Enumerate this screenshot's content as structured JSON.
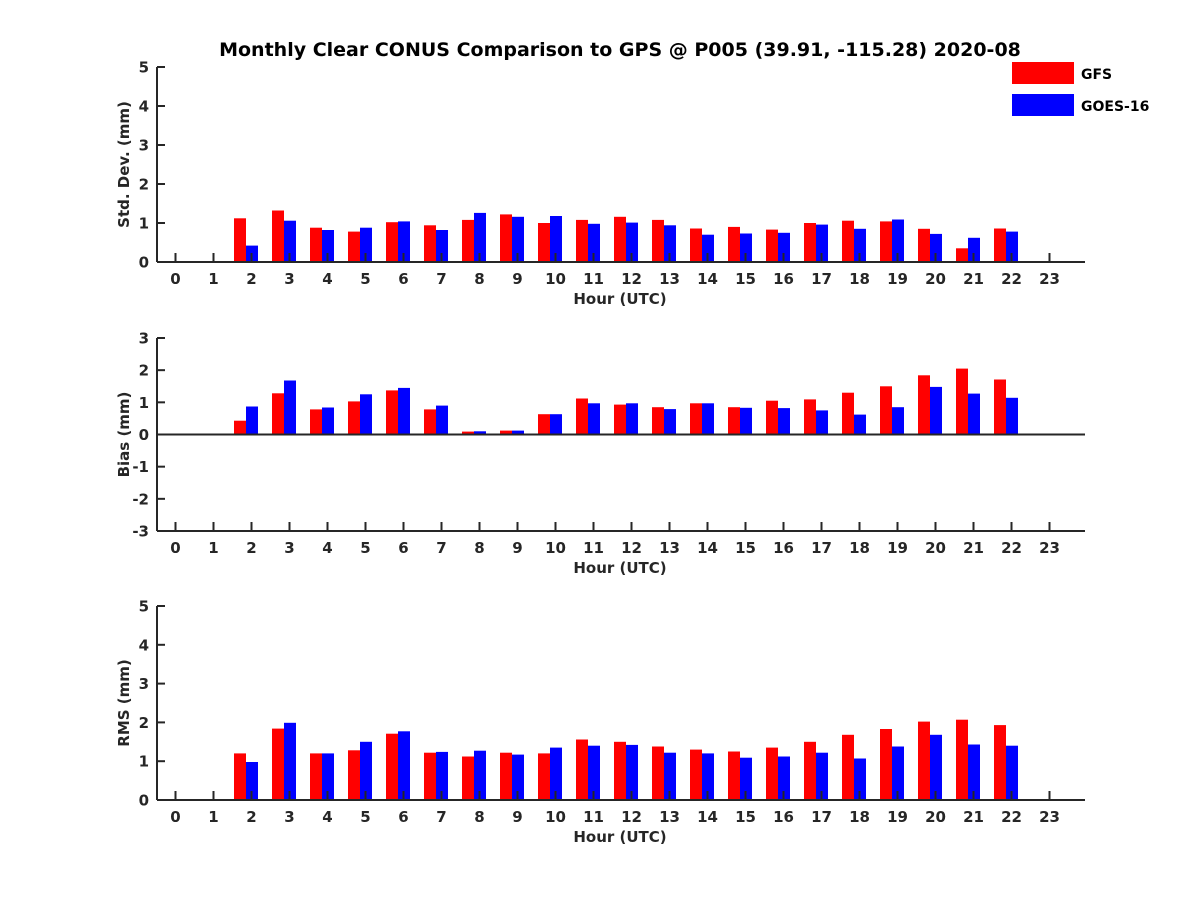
{
  "title": "Monthly Clear CONUS Comparison to GPS @ P005 (39.91, -115.28) 2020-08",
  "legend": [
    {
      "name": "GFS",
      "color": "#ff0000"
    },
    {
      "name": "GOES-16",
      "color": "#0000ff"
    }
  ],
  "chart_data": [
    {
      "type": "bar",
      "ylabel": "Std. Dev. (mm)",
      "xlabel": "Hour (UTC)",
      "ylim": [
        0,
        5
      ],
      "yticks": [
        0,
        1,
        2,
        3,
        4,
        5
      ],
      "categories": [
        "0",
        "1",
        "2",
        "3",
        "4",
        "5",
        "6",
        "7",
        "8",
        "9",
        "10",
        "11",
        "12",
        "13",
        "14",
        "15",
        "16",
        "17",
        "18",
        "19",
        "20",
        "21",
        "22",
        "23"
      ],
      "series": [
        {
          "name": "GFS",
          "values": [
            null,
            null,
            1.12,
            1.32,
            0.88,
            0.78,
            1.02,
            0.94,
            1.08,
            1.22,
            1.0,
            1.08,
            1.16,
            1.08,
            0.86,
            0.9,
            0.83,
            1.0,
            1.06,
            1.04,
            0.85,
            0.35,
            0.86,
            null
          ]
        },
        {
          "name": "GOES-16",
          "values": [
            null,
            null,
            0.42,
            1.06,
            0.82,
            0.88,
            1.04,
            0.82,
            1.26,
            1.16,
            1.18,
            0.98,
            1.01,
            0.94,
            0.7,
            0.73,
            0.75,
            0.96,
            0.85,
            1.09,
            0.72,
            0.62,
            0.78,
            null
          ]
        }
      ]
    },
    {
      "type": "bar",
      "ylabel": "Bias (mm)",
      "xlabel": "Hour (UTC)",
      "ylim": [
        -3,
        3
      ],
      "yticks": [
        -3,
        -2,
        -1,
        0,
        1,
        2,
        3
      ],
      "categories": [
        "0",
        "1",
        "2",
        "3",
        "4",
        "5",
        "6",
        "7",
        "8",
        "9",
        "10",
        "11",
        "12",
        "13",
        "14",
        "15",
        "16",
        "17",
        "18",
        "19",
        "20",
        "21",
        "22",
        "23"
      ],
      "series": [
        {
          "name": "GFS",
          "values": [
            null,
            null,
            0.43,
            1.28,
            0.78,
            1.03,
            1.37,
            0.78,
            0.09,
            0.12,
            0.63,
            1.12,
            0.93,
            0.85,
            0.97,
            0.85,
            1.05,
            1.09,
            1.3,
            1.5,
            1.84,
            2.05,
            1.71,
            null
          ]
        },
        {
          "name": "GOES-16",
          "values": [
            null,
            null,
            0.87,
            1.68,
            0.84,
            1.25,
            1.45,
            0.9,
            0.1,
            0.12,
            0.63,
            0.97,
            0.97,
            0.79,
            0.97,
            0.83,
            0.82,
            0.75,
            0.62,
            0.85,
            1.48,
            1.27,
            1.14,
            null
          ]
        }
      ]
    },
    {
      "type": "bar",
      "ylabel": "RMS (mm)",
      "xlabel": "Hour (UTC)",
      "ylim": [
        0,
        5
      ],
      "yticks": [
        0,
        1,
        2,
        3,
        4,
        5
      ],
      "categories": [
        "0",
        "1",
        "2",
        "3",
        "4",
        "5",
        "6",
        "7",
        "8",
        "9",
        "10",
        "11",
        "12",
        "13",
        "14",
        "15",
        "16",
        "17",
        "18",
        "19",
        "20",
        "21",
        "22",
        "23"
      ],
      "series": [
        {
          "name": "GFS",
          "values": [
            null,
            null,
            1.2,
            1.84,
            1.2,
            1.28,
            1.71,
            1.22,
            1.12,
            1.22,
            1.2,
            1.56,
            1.5,
            1.38,
            1.3,
            1.25,
            1.35,
            1.5,
            1.68,
            1.83,
            2.02,
            2.07,
            1.93,
            null
          ]
        },
        {
          "name": "GOES-16",
          "values": [
            null,
            null,
            0.98,
            1.99,
            1.2,
            1.5,
            1.77,
            1.24,
            1.27,
            1.17,
            1.35,
            1.4,
            1.42,
            1.22,
            1.2,
            1.09,
            1.12,
            1.22,
            1.07,
            1.38,
            1.68,
            1.43,
            1.4,
            null
          ]
        }
      ]
    }
  ]
}
